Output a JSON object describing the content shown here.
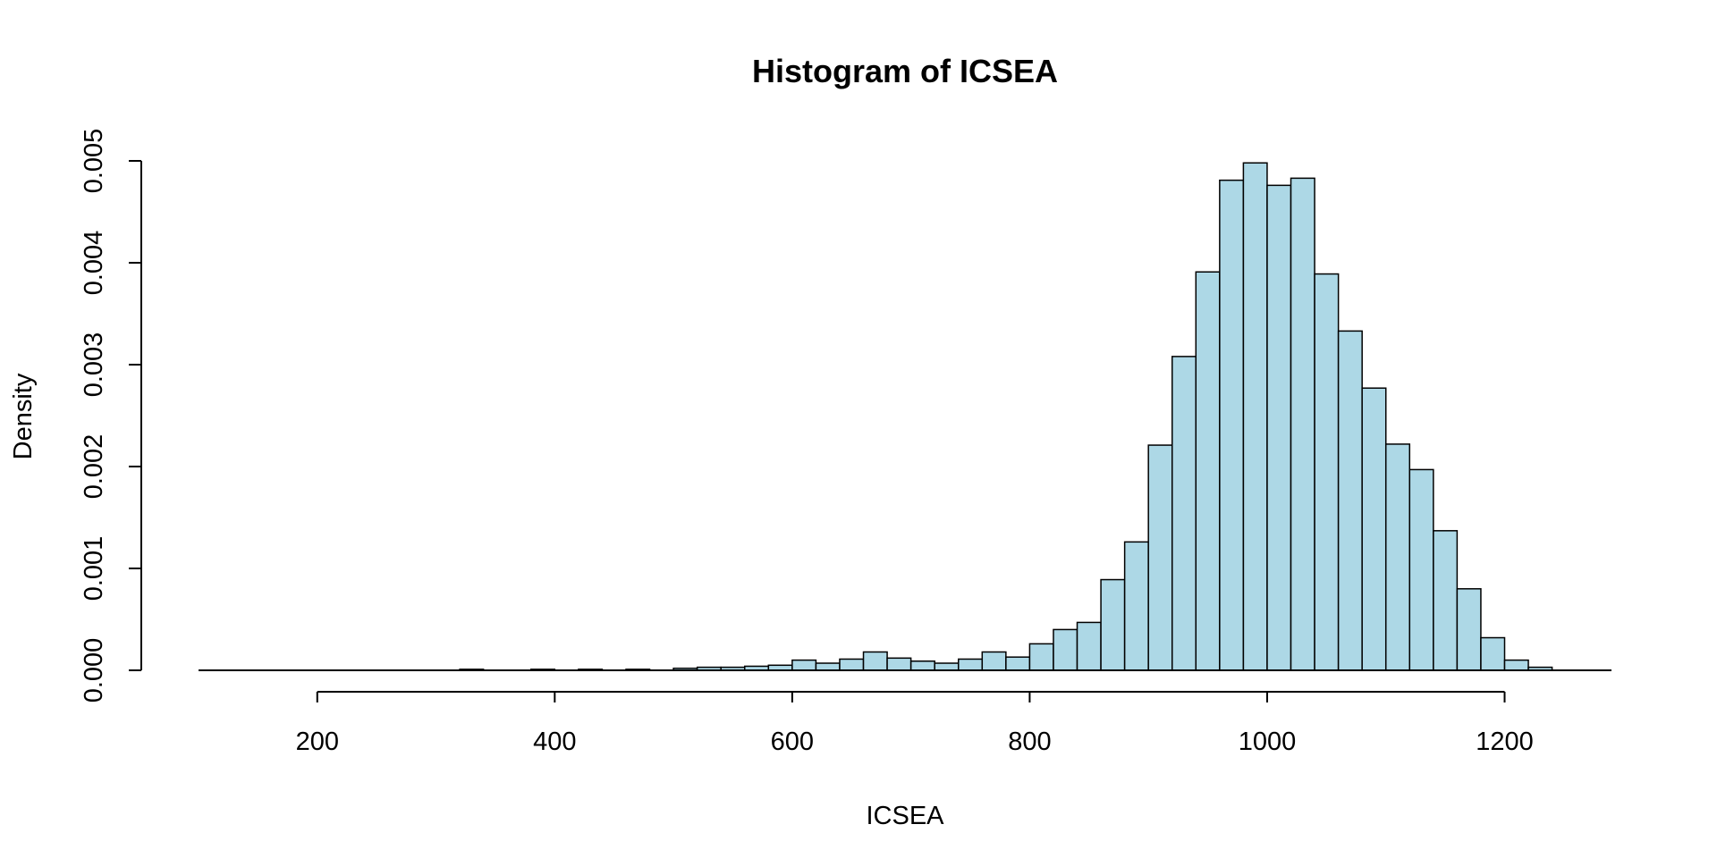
{
  "chart_data": {
    "type": "bar",
    "subtype": "histogram",
    "title": "Histogram of ICSEA",
    "xlabel": "ICSEA",
    "ylabel": "Density",
    "xlim": [
      100,
      1290
    ],
    "ylim": [
      0,
      0.005
    ],
    "x_ticks": [
      200,
      400,
      600,
      800,
      1000,
      1200
    ],
    "x_tick_labels": [
      "200",
      "400",
      "600",
      "800",
      "1000",
      "1200"
    ],
    "y_ticks": [
      0,
      0.001,
      0.002,
      0.003,
      0.004,
      0.005
    ],
    "y_tick_labels": [
      "0.000",
      "0.001",
      "0.002",
      "0.003",
      "0.004",
      "0.005"
    ],
    "bar_color": "#ADD8E6",
    "bin_width": 20,
    "bins_start": [
      320,
      340,
      360,
      380,
      400,
      420,
      440,
      460,
      480,
      500,
      520,
      540,
      560,
      580,
      600,
      620,
      640,
      660,
      680,
      700,
      720,
      740,
      760,
      780,
      800,
      820,
      840,
      860,
      880,
      900,
      920,
      940,
      960,
      980,
      1000,
      1020,
      1040,
      1060,
      1080,
      1100,
      1120,
      1140,
      1160,
      1180,
      1200,
      1220
    ],
    "values": [
      1e-05,
      0,
      0,
      1e-05,
      0,
      1e-05,
      0,
      1e-05,
      0,
      2e-05,
      3e-05,
      3e-05,
      4e-05,
      5e-05,
      0.0001,
      7e-05,
      0.00011,
      0.00018,
      0.00012,
      9e-05,
      7e-05,
      0.00011,
      0.00018,
      0.00013,
      0.00026,
      0.0004,
      0.00047,
      0.00089,
      0.00126,
      0.00221,
      0.00308,
      0.00391,
      0.00481,
      0.00498,
      0.00476,
      0.00483,
      0.00389,
      0.00333,
      0.00277,
      0.00222,
      0.00197,
      0.00137,
      0.0008,
      0.00032,
      0.0001,
      3e-05
    ]
  }
}
